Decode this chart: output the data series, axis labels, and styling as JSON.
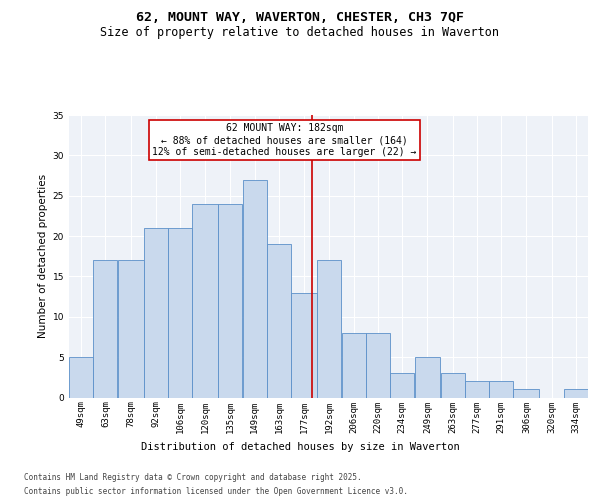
{
  "title1": "62, MOUNT WAY, WAVERTON, CHESTER, CH3 7QF",
  "title2": "Size of property relative to detached houses in Waverton",
  "xlabel": "Distribution of detached houses by size in Waverton",
  "ylabel": "Number of detached properties",
  "annotation_line1": "62 MOUNT WAY: 182sqm",
  "annotation_line2": "← 88% of detached houses are smaller (164)",
  "annotation_line3": "12% of semi-detached houses are larger (22) →",
  "property_size": 182,
  "bar_color": "#c9d9ed",
  "bar_edge_color": "#5b8fc9",
  "annotation_line_color": "#cc0000",
  "annotation_box_color": "#cc0000",
  "background_color": "#eef2f8",
  "grid_color": "#ffffff",
  "categories": [
    "49sqm",
    "63sqm",
    "78sqm",
    "92sqm",
    "106sqm",
    "120sqm",
    "135sqm",
    "149sqm",
    "163sqm",
    "177sqm",
    "192sqm",
    "206sqm",
    "220sqm",
    "234sqm",
    "249sqm",
    "263sqm",
    "277sqm",
    "291sqm",
    "306sqm",
    "320sqm",
    "334sqm"
  ],
  "values": [
    5,
    17,
    17,
    21,
    21,
    24,
    24,
    27,
    19,
    13,
    17,
    8,
    8,
    3,
    5,
    3,
    2,
    2,
    1,
    0,
    1
  ],
  "bin_edges": [
    42,
    56,
    70,
    85,
    99,
    113,
    128,
    142,
    156,
    170,
    185,
    199,
    213,
    227,
    241,
    256,
    270,
    284,
    298,
    313,
    327,
    341
  ],
  "ylim": [
    0,
    35
  ],
  "yticks": [
    0,
    5,
    10,
    15,
    20,
    25,
    30,
    35
  ],
  "footnote1": "Contains HM Land Registry data © Crown copyright and database right 2025.",
  "footnote2": "Contains public sector information licensed under the Open Government Licence v3.0.",
  "title_fontsize": 9.5,
  "subtitle_fontsize": 8.5,
  "axis_label_fontsize": 7.5,
  "tick_fontsize": 6.5,
  "annotation_fontsize": 7,
  "footnote_fontsize": 5.5
}
